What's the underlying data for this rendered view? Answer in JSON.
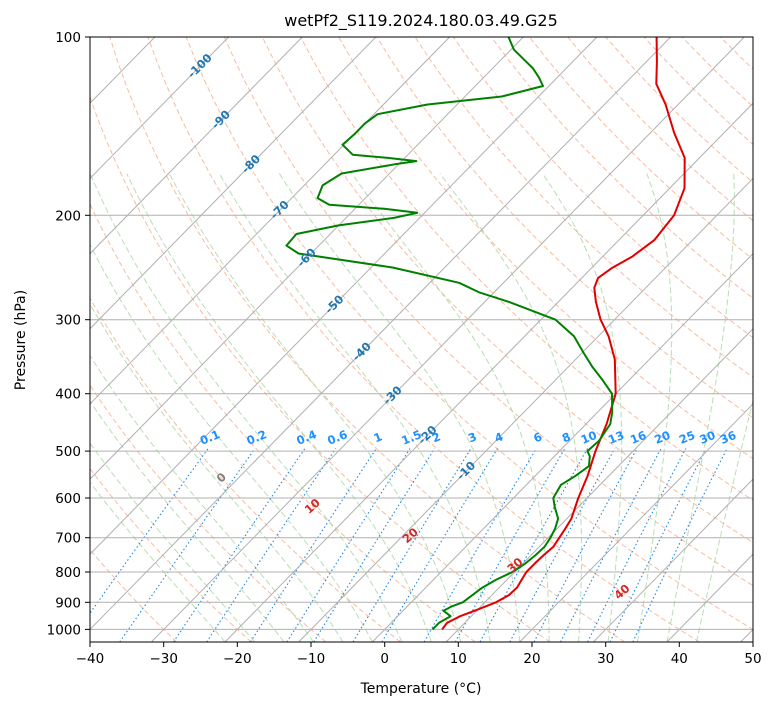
{
  "chart_data": {
    "type": "skew-t log-p",
    "title": "wetPf2_S119.2024.180.03.49.G25",
    "xlabel": "Temperature (°C)",
    "ylabel": "Pressure (hPa)",
    "xlim": [
      -40,
      50
    ],
    "ylim": [
      1050,
      100
    ],
    "y_scale": "log",
    "x_ticks": [
      -40,
      -30,
      -20,
      -10,
      0,
      10,
      20,
      30,
      40,
      50
    ],
    "y_ticks": [
      1000,
      900,
      800,
      700,
      600,
      500,
      400,
      300,
      200,
      100
    ],
    "grid": true,
    "colors": {
      "temperature": "#e00000",
      "dewpoint": "#008000",
      "isotherm": "#b0b0b0",
      "dry_adiabat": "#f4a582",
      "moist_adiabat": "#a8d5a2",
      "mixing_ratio": "#1e88e5",
      "dry_adiabat_label": "#d62728",
      "isotherm_label": "#1f77b4",
      "lcl_label": "#808080",
      "mr_label": "#1e90ff"
    },
    "series": [
      {
        "name": "",
        "color": "#e00000",
        "points": [
          [
            1000,
            7.8
          ],
          [
            975,
            7.6
          ],
          [
            950,
            8.5
          ],
          [
            925,
            10.0
          ],
          [
            900,
            11.5
          ],
          [
            875,
            12.3
          ],
          [
            850,
            12.4
          ],
          [
            825,
            12.0
          ],
          [
            800,
            11.6
          ],
          [
            775,
            11.6
          ],
          [
            750,
            11.7
          ],
          [
            725,
            11.9
          ],
          [
            700,
            11.5
          ],
          [
            675,
            11.1
          ],
          [
            650,
            10.6
          ],
          [
            600,
            8.8
          ],
          [
            550,
            7.1
          ],
          [
            500,
            4.9
          ],
          [
            450,
            2.8
          ],
          [
            400,
            0.0
          ],
          [
            350,
            -4.7
          ],
          [
            320,
            -8.6
          ],
          [
            300,
            -11.9
          ],
          [
            280,
            -14.9
          ],
          [
            265,
            -17.0
          ],
          [
            255,
            -17.8
          ],
          [
            245,
            -17.2
          ],
          [
            235,
            -16.0
          ],
          [
            220,
            -15.2
          ],
          [
            200,
            -15.8
          ],
          [
            180,
            -18.0
          ],
          [
            160,
            -22.0
          ],
          [
            145,
            -26.8
          ],
          [
            130,
            -31.7
          ],
          [
            120,
            -35.7
          ],
          [
            110,
            -38.6
          ],
          [
            100,
            -41.9
          ]
        ]
      },
      {
        "name": "",
        "color": "#008000",
        "points": [
          [
            1000,
            6.5
          ],
          [
            975,
            6.5
          ],
          [
            950,
            7.2
          ],
          [
            930,
            5.5
          ],
          [
            915,
            6.0
          ],
          [
            900,
            7.0
          ],
          [
            850,
            7.7
          ],
          [
            825,
            8.5
          ],
          [
            800,
            9.7
          ],
          [
            775,
            10.3
          ],
          [
            750,
            10.6
          ],
          [
            725,
            10.7
          ],
          [
            700,
            10.3
          ],
          [
            675,
            9.7
          ],
          [
            650,
            8.8
          ],
          [
            620,
            6.7
          ],
          [
            600,
            5.4
          ],
          [
            570,
            4.7
          ],
          [
            550,
            5.5
          ],
          [
            530,
            6.0
          ],
          [
            510,
            4.8
          ],
          [
            500,
            3.8
          ],
          [
            480,
            4.0
          ],
          [
            450,
            3.3
          ],
          [
            430,
            2.0
          ],
          [
            400,
            -0.5
          ],
          [
            380,
            -3.5
          ],
          [
            360,
            -6.8
          ],
          [
            340,
            -10.0
          ],
          [
            320,
            -13.3
          ],
          [
            300,
            -18.0
          ],
          [
            280,
            -26.7
          ],
          [
            270,
            -31.9
          ],
          [
            260,
            -36.0
          ],
          [
            245,
            -47.0
          ],
          [
            238,
            -54.8
          ],
          [
            232,
            -61.7
          ],
          [
            225,
            -64.4
          ],
          [
            215,
            -64.6
          ],
          [
            208,
            -60.0
          ],
          [
            202,
            -53.5
          ],
          [
            198,
            -51.0
          ],
          [
            195,
            -56.0
          ],
          [
            192,
            -64.0
          ],
          [
            187,
            -66.5
          ],
          [
            178,
            -67.5
          ],
          [
            170,
            -66.5
          ],
          [
            164,
            -60.5
          ],
          [
            162,
            -58.0
          ],
          [
            160,
            -62.3
          ],
          [
            158,
            -67.5
          ],
          [
            152,
            -70.2
          ],
          [
            146,
            -70.0
          ],
          [
            140,
            -70.0
          ],
          [
            135,
            -69.5
          ],
          [
            130,
            -64.0
          ],
          [
            126,
            -55.0
          ],
          [
            121,
            -50.8
          ],
          [
            117,
            -52.5
          ],
          [
            113,
            -54.5
          ],
          [
            109,
            -57.0
          ],
          [
            105,
            -59.6
          ],
          [
            100,
            -62.0
          ]
        ]
      }
    ],
    "isotherm_labels": [
      -100,
      -90,
      -80,
      -70,
      -60,
      -50,
      -40,
      -30,
      -20,
      -10
    ],
    "dry_adiabat_labels": [
      0,
      10,
      20,
      30,
      40
    ],
    "mixing_ratio_labels": [
      "0.1",
      "0.2",
      "0.4",
      "0.6",
      "1",
      "1.5",
      "2",
      "3",
      "4",
      "6",
      "8",
      "10",
      "13",
      "16",
      "20",
      "25",
      "30",
      "36"
    ]
  }
}
